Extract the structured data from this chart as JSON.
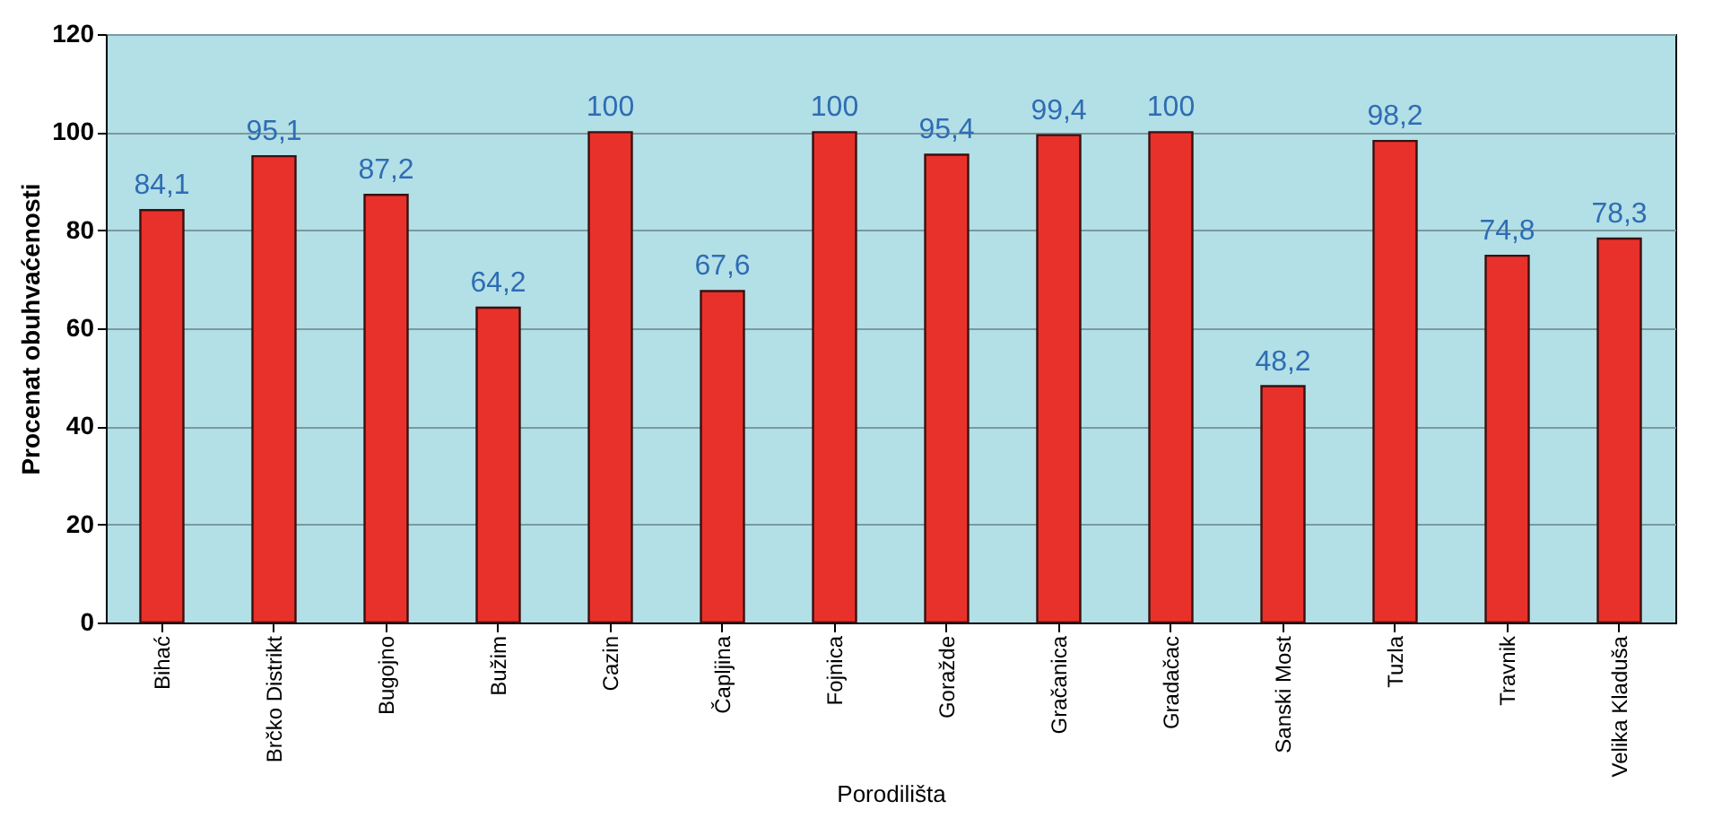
{
  "chart_data": {
    "type": "bar",
    "xlabel": "Porodilišta",
    "ylabel": "Procenat obuhvaćenosti",
    "categories": [
      "Bihać",
      "Brčko Distrikt",
      "Bugojno",
      "Bužim",
      "Cazin",
      "Čapljina",
      "Fojnica",
      "Goražde",
      "Gračanica",
      "Gradačac",
      "Sanski Most",
      "Tuzla",
      "Travnik",
      "Velika Kladuša"
    ],
    "values": [
      84.1,
      95.1,
      87.2,
      64.2,
      100,
      67.6,
      100,
      95.4,
      99.4,
      100,
      48.2,
      98.2,
      74.8,
      78.3
    ],
    "value_labels": [
      "84,1",
      "95,1",
      "87,2",
      "64,2",
      "100",
      "67,6",
      "100",
      "95,4",
      "99,4",
      "100",
      "48,2",
      "98,2",
      "74,8",
      "78,3"
    ],
    "color": "#e8312b",
    "ylim": [
      0,
      120
    ],
    "yticks": [
      0,
      20,
      40,
      60,
      80,
      100,
      120
    ],
    "grid": "y"
  }
}
